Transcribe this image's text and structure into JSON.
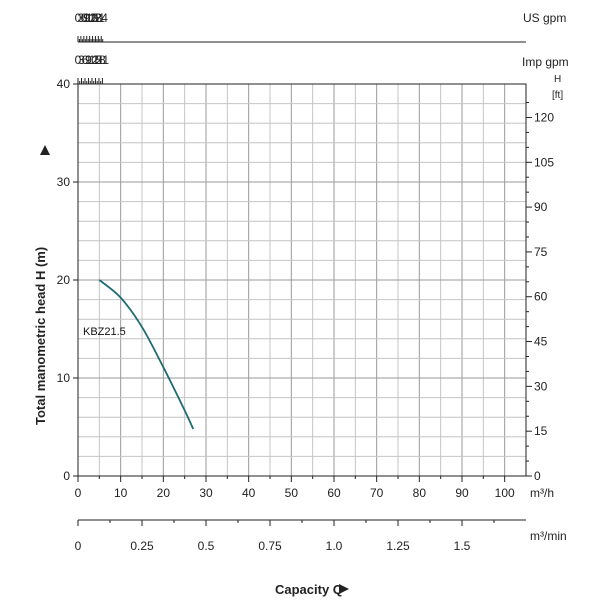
{
  "chart_data": {
    "type": "line",
    "ylabel": "Total manometric head H (m)",
    "xlabel": "Capacity Q",
    "xlim": [
      0,
      105
    ],
    "ylim": [
      0,
      40
    ],
    "grid": true,
    "x_axis_bottom": {
      "unit": "m³/h",
      "ticks": [
        "0",
        "10",
        "20",
        "30",
        "40",
        "50",
        "60",
        "70",
        "80",
        "90",
        "100"
      ],
      "tick_values": [
        0,
        10,
        20,
        30,
        40,
        50,
        60,
        70,
        80,
        90,
        100
      ]
    },
    "x_axis_m3min": {
      "unit": "m³/min",
      "ticks": [
        "0",
        "0.25",
        "0.5",
        "0.75",
        "1.0",
        "1.25",
        "1.5"
      ],
      "tick_values": [
        0,
        0.25,
        0.5,
        0.75,
        1.0,
        1.25,
        1.5
      ]
    },
    "x_axis_us_gpm": {
      "unit": "US gpm",
      "ticks": [
        "0",
        "3",
        "6",
        "9",
        "12",
        "15",
        "18",
        "21",
        "24"
      ],
      "tick_values": [
        0,
        3,
        6,
        9,
        12,
        15,
        18,
        21,
        24
      ]
    },
    "x_axis_imp_gpm": {
      "unit": "Imp gpm",
      "ticks": [
        "0",
        "3",
        "6",
        "9",
        "12",
        "15",
        "18",
        "21"
      ],
      "tick_values": [
        0,
        3,
        6,
        9,
        12,
        15,
        18,
        21
      ]
    },
    "y_axis_left": {
      "unit": "",
      "ticks": [
        "0",
        "10",
        "20",
        "30",
        "40"
      ],
      "tick_values": [
        0,
        10,
        20,
        30,
        40
      ]
    },
    "y_axis_right": {
      "unit_h": "H",
      "unit": "[ft]",
      "ticks": [
        "0",
        "15",
        "30",
        "45",
        "60",
        "75",
        "90",
        "105",
        "120"
      ],
      "tick_values": [
        0,
        15,
        30,
        45,
        60,
        75,
        90,
        105,
        120
      ]
    },
    "series": [
      {
        "name": "KBZ21.5",
        "color": "#1f6b70",
        "x": [
          5,
          10,
          15,
          20,
          25,
          27
        ],
        "y": [
          20,
          18.2,
          15.2,
          11.1,
          6.7,
          4.8
        ]
      }
    ]
  }
}
